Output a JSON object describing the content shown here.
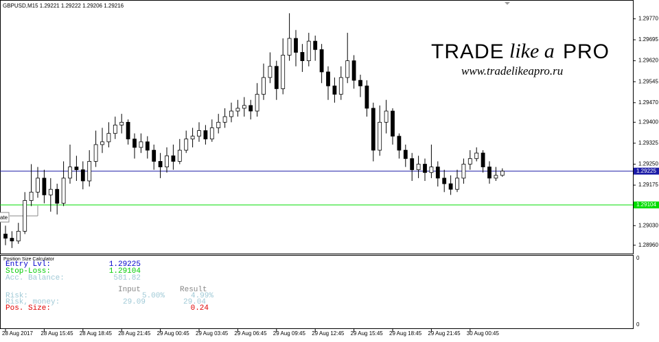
{
  "chart_data": {
    "type": "candlestick",
    "title": "GBPUSD,M15  1.29221 1.29222 1.29206 1.29216",
    "categories": [
      "28 Aug 2017",
      null,
      null,
      null,
      null,
      null,
      "28 Aug 15:45",
      null,
      null,
      null,
      null,
      null,
      "28 Aug 18:45",
      null,
      null,
      null,
      null,
      null,
      "28 Aug 21:45",
      null,
      null,
      null,
      null,
      null,
      "29 Aug 00:45",
      null,
      null,
      null,
      null,
      null,
      "29 Aug 03:45",
      null,
      null,
      null,
      null,
      null,
      "29 Aug 06:45",
      null,
      null,
      null,
      null,
      null,
      "29 Aug 09:45",
      null,
      null,
      null,
      null,
      null,
      "29 Aug 12:45",
      null,
      null,
      null,
      null,
      null,
      "29 Aug 15:45",
      null,
      null,
      null,
      null,
      null,
      "29 Aug 18:45",
      null,
      null,
      null,
      null,
      null,
      "29 Aug 21:45",
      null,
      null,
      null,
      null,
      null,
      "30 Aug 00:45",
      null,
      null,
      null,
      null,
      null
    ],
    "open": [
      1.29,
      1.28985,
      1.28975,
      1.2901,
      1.2912,
      1.2915,
      1.292,
      1.2914,
      1.2916,
      1.2911,
      1.292,
      1.2924,
      1.2923,
      1.2919,
      1.2926,
      1.2932,
      1.2933,
      1.2936,
      1.2939,
      1.294,
      1.2934,
      1.2931,
      1.2933,
      1.293,
      1.2926,
      1.2924,
      1.2928,
      1.2926,
      1.293,
      1.2934,
      1.2935,
      1.2937,
      1.2934,
      1.2938,
      1.294,
      1.2942,
      1.2944,
      1.2945,
      1.2946,
      1.2944,
      1.295,
      1.2956,
      1.296,
      1.2952,
      1.2964,
      1.297,
      1.2965,
      1.2962,
      1.2969,
      1.2966,
      1.2958,
      1.2953,
      1.295,
      1.2956,
      1.2962,
      1.2955,
      1.2953,
      1.2945,
      1.293,
      1.294,
      1.2944,
      1.2935,
      1.293,
      1.2927,
      1.2923,
      1.2925,
      1.2922,
      1.2924,
      1.292,
      1.2918,
      1.2916,
      1.292,
      1.2925,
      1.2927,
      1.2929,
      1.2924,
      1.292,
      1.2921
    ],
    "high": [
      1.2903,
      1.2901,
      1.2904,
      1.2915,
      1.2925,
      1.2924,
      1.2923,
      1.292,
      1.2918,
      1.2926,
      1.2932,
      1.2928,
      1.2926,
      1.293,
      1.2937,
      1.2938,
      1.294,
      1.2942,
      1.2943,
      1.2941,
      1.2936,
      1.2936,
      1.2935,
      1.2932,
      1.2929,
      1.2931,
      1.2932,
      1.2934,
      1.2937,
      1.2938,
      1.294,
      1.2939,
      1.2941,
      1.2943,
      1.2945,
      1.2947,
      1.2948,
      1.2949,
      1.2948,
      1.2954,
      1.2961,
      1.2965,
      1.2962,
      1.297,
      1.2979,
      1.2973,
      1.2968,
      1.2972,
      1.2971,
      1.2968,
      1.296,
      1.2956,
      1.296,
      1.2972,
      1.2964,
      1.2957,
      1.2955,
      1.2947,
      1.2946,
      1.2948,
      1.2945,
      1.2936,
      1.2932,
      1.2929,
      1.2928,
      1.2927,
      1.2932,
      1.2926,
      1.2923,
      1.2921,
      1.2923,
      1.2927,
      1.293,
      1.2931,
      1.293,
      1.2926,
      1.2924,
      1.29235
    ],
    "low": [
      1.2896,
      1.2895,
      1.28965,
      1.29,
      1.291,
      1.2913,
      1.2911,
      1.2908,
      1.2907,
      1.291,
      1.2918,
      1.2919,
      1.2916,
      1.2917,
      1.2924,
      1.2929,
      1.2931,
      1.2934,
      1.2936,
      1.2932,
      1.2927,
      1.2929,
      1.2927,
      1.2923,
      1.292,
      1.2922,
      1.2923,
      1.2925,
      1.2929,
      1.2931,
      1.2933,
      1.2932,
      1.2933,
      1.2936,
      1.2938,
      1.294,
      1.2942,
      1.2942,
      1.2941,
      1.2942,
      1.2948,
      1.2954,
      1.2948,
      1.295,
      1.2962,
      1.296,
      1.2958,
      1.296,
      1.2962,
      1.2954,
      1.2948,
      1.2947,
      1.2948,
      1.2954,
      1.2952,
      1.2949,
      1.2942,
      1.2926,
      1.2928,
      1.2936,
      1.2932,
      1.2927,
      1.2924,
      1.2919,
      1.292,
      1.2919,
      1.292,
      1.2917,
      1.2915,
      1.2914,
      1.2915,
      1.2918,
      1.2923,
      1.2926,
      1.2922,
      1.2918,
      1.2919,
      1.29205
    ],
    "close": [
      1.28985,
      1.28975,
      1.2901,
      1.2912,
      1.2915,
      1.292,
      1.2914,
      1.2916,
      1.2911,
      1.292,
      1.2924,
      1.2923,
      1.2919,
      1.2926,
      1.2932,
      1.2933,
      1.2936,
      1.2939,
      1.294,
      1.2934,
      1.2931,
      1.2933,
      1.293,
      1.2926,
      1.2924,
      1.2928,
      1.2926,
      1.293,
      1.2934,
      1.2935,
      1.2937,
      1.2934,
      1.2938,
      1.294,
      1.2942,
      1.2944,
      1.2945,
      1.2946,
      1.2944,
      1.295,
      1.2956,
      1.296,
      1.2952,
      1.2964,
      1.297,
      1.2965,
      1.2962,
      1.2969,
      1.2966,
      1.2958,
      1.2953,
      1.295,
      1.2956,
      1.2962,
      1.2955,
      1.2953,
      1.2945,
      1.293,
      1.294,
      1.2944,
      1.2935,
      1.293,
      1.2927,
      1.2923,
      1.2925,
      1.2922,
      1.2924,
      1.292,
      1.2918,
      1.2916,
      1.292,
      1.2925,
      1.2927,
      1.2929,
      1.2924,
      1.292,
      1.2921,
      1.29225
    ],
    "ylim": [
      1.2893,
      1.2983
    ],
    "yticks": [
      {
        "value": 1.2977,
        "label": "1.29770"
      },
      1.29695,
      {
        "value": 1.2962,
        "label": "1.29620"
      },
      1.29545,
      {
        "value": 1.2947,
        "label": "1.29470"
      },
      {
        "value": 1.294,
        "label": "1.29400"
      },
      1.29325,
      {
        "value": 1.2925,
        "label": "1.29250"
      },
      1.29175,
      {
        "value": 1.2903,
        "label": "1.29030"
      },
      {
        "value": 1.2896,
        "label": "1.28960"
      }
    ],
    "hlines": [
      {
        "value": 1.29225,
        "color": "#1a1aa6"
      },
      {
        "value": 1.29104,
        "color": "#00dd00"
      }
    ],
    "color": "#000000",
    "grid": false
  },
  "watermark": {
    "brand": [
      "TRADE",
      "like a",
      "PRO"
    ],
    "url": "www.tradelikeapro.ru"
  },
  "partial_button": "ate",
  "panel": {
    "title": "Position Size Calculator",
    "rows": [
      [
        "Entry Lvl:",
        "1.29225"
      ],
      [
        "Stop-Loss:",
        "1.29104"
      ],
      [
        "Acc. Balance:",
        "581.82"
      ]
    ],
    "headers": [
      "Input",
      "Result"
    ],
    "risk": [
      "Risk:",
      "5.00%",
      "4.99%"
    ],
    "money": [
      "Risk, money:",
      "29.09",
      "29.04"
    ],
    "size": [
      "Pos. Size:",
      "0.24"
    ],
    "axis_labels": [
      "0",
      "0"
    ]
  }
}
